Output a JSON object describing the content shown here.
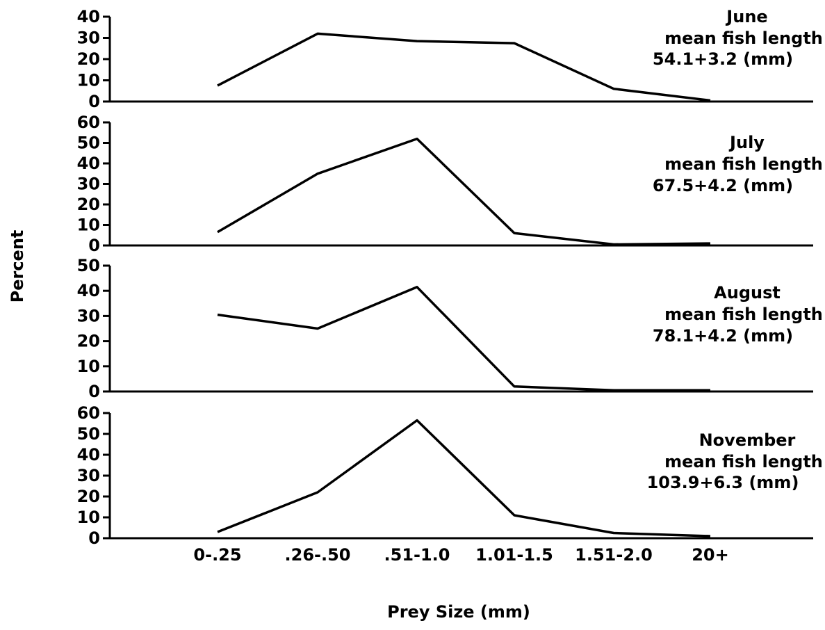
{
  "chart_data": {
    "type": "line",
    "xlabel": "Prey Size (mm)",
    "ylabel": "Percent",
    "categories": [
      "0-.25",
      ".26-.50",
      ".51-1.0",
      "1.01-1.5",
      "1.51-2.0",
      "20+"
    ],
    "grid": false,
    "panels": [
      {
        "month": "June",
        "subtitle": "mean fish length",
        "size": "54.1+3.2 (mm)",
        "ylim": [
          0,
          40
        ],
        "yticks": [
          0,
          10,
          20,
          30,
          40
        ],
        "values": [
          7.5,
          32,
          28.5,
          27.5,
          6,
          0.5
        ]
      },
      {
        "month": "July",
        "subtitle": "mean fish length",
        "size": "67.5+4.2 (mm)",
        "ylim": [
          0,
          60
        ],
        "yticks": [
          0,
          10,
          20,
          30,
          40,
          50,
          60
        ],
        "values": [
          6.5,
          35,
          52,
          6,
          0.5,
          1
        ]
      },
      {
        "month": "August",
        "subtitle": "mean fish length",
        "size": "78.1+4.2 (mm)",
        "ylim": [
          0,
          50
        ],
        "yticks": [
          0,
          10,
          20,
          30,
          40,
          50
        ],
        "values": [
          30.5,
          25,
          41.5,
          2,
          0.5,
          0.5
        ]
      },
      {
        "month": "November",
        "subtitle": "mean fish length",
        "size": "103.9+6.3 (mm)",
        "ylim": [
          0,
          60
        ],
        "yticks": [
          0,
          10,
          20,
          30,
          40,
          50,
          60
        ],
        "values": [
          3,
          22,
          56.5,
          11,
          2.5,
          1
        ]
      }
    ]
  }
}
